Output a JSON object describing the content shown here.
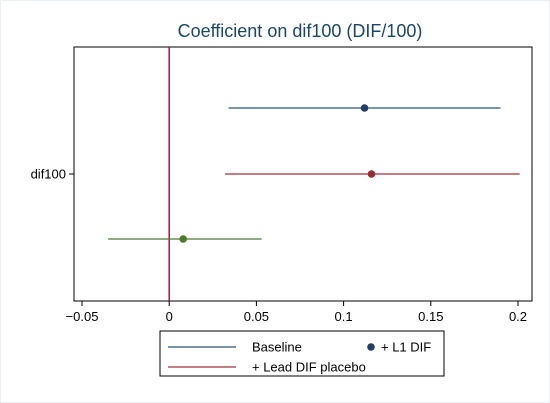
{
  "chart_data": {
    "type": "forest",
    "title": "Coefficient on dif100 (DIF/100)",
    "xlabel": "",
    "ylabel": "",
    "xlim": [
      -0.06,
      0.205
    ],
    "x_ticks": [
      {
        "value": -0.05,
        "label": "−0.05"
      },
      {
        "value": 0,
        "label": "0"
      },
      {
        "value": 0.05,
        "label": "0.05"
      },
      {
        "value": 0.1,
        "label": "0.1"
      },
      {
        "value": 0.15,
        "label": "0.15"
      },
      {
        "value": 0.2,
        "label": "0.2"
      }
    ],
    "y_tick_label": "dif100",
    "reference_line": {
      "x": 0,
      "color": "#a3154a"
    },
    "grid": false,
    "legend_position": "bottom",
    "series": [
      {
        "name": "Baseline",
        "estimate": 0.112,
        "ci": [
          0.034,
          0.19
        ],
        "color": "#2b5676",
        "marker_color": "#1f3f66",
        "row": 1
      },
      {
        "name": "+ Lead DIF placebo",
        "estimate": 0.116,
        "ci": [
          0.032,
          0.201
        ],
        "color": "#a1323a",
        "marker_color": "#9a2a33",
        "row": 2
      },
      {
        "name": "",
        "estimate": 0.008,
        "ci": [
          -0.035,
          0.053
        ],
        "color": "#4f7a2d",
        "marker_color": "#4a7a2a",
        "row": 3
      }
    ],
    "legend": [
      {
        "label": "Baseline",
        "symbol": "line",
        "color": "#2b5676"
      },
      {
        "label": "+ L1 DIF",
        "symbol": "dot",
        "color": "#1f3f66"
      },
      {
        "label": "+ Lead DIF placebo",
        "symbol": "line",
        "color": "#a1323a"
      }
    ]
  }
}
